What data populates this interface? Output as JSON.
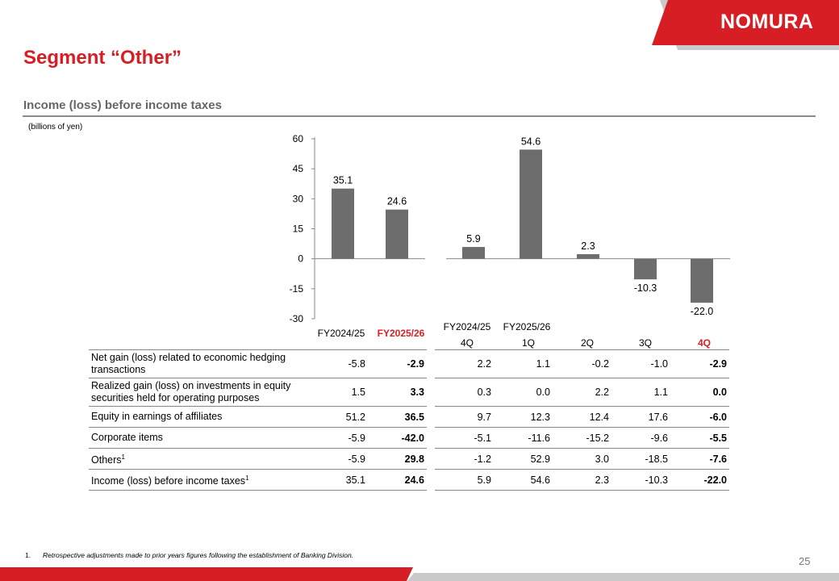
{
  "logo": "NOMURA",
  "page_title": "Segment “Other”",
  "section_title": "Income (loss) before income taxes",
  "units_note": "(billions of yen)",
  "colors": {
    "accent": "#d71e24",
    "bar": "#6d6d6d",
    "grey": "#c9c9c9"
  },
  "chart_data": {
    "type": "bar",
    "y_ticks": [
      60,
      45,
      30,
      15,
      0,
      -15,
      -30
    ],
    "ylim": [
      -30,
      60
    ],
    "groups": [
      {
        "name": "annual",
        "categories": [
          "FY2024/25",
          "FY2025/26"
        ],
        "values": [
          35.1,
          24.6
        ]
      },
      {
        "name": "quarterly",
        "categories": [
          "FY2024/25 4Q",
          "FY2025/26 1Q",
          "2Q",
          "3Q",
          "4Q"
        ],
        "values": [
          5.9,
          54.6,
          2.3,
          -10.3,
          -22.0
        ]
      }
    ],
    "data_labels": [
      "35.1",
      "24.6",
      "5.9",
      "54.6",
      "2.3",
      "-10.3",
      "-22.0"
    ]
  },
  "headers": {
    "annual": [
      "FY2024/25",
      "FY2025/26"
    ],
    "quarter_years": [
      "FY2024/25",
      "FY2025/26"
    ],
    "quarters": [
      "4Q",
      "1Q",
      "2Q",
      "3Q",
      "4Q"
    ]
  },
  "table": {
    "rows": [
      {
        "label": "Net gain (loss) related to economic hedging transactions",
        "sup": "",
        "values": [
          "-5.8",
          "-2.9",
          "2.2",
          "1.1",
          "-0.2",
          "-1.0",
          "-2.9"
        ]
      },
      {
        "label": "Realized gain (loss) on investments in equity securities held for operating purposes",
        "sup": "",
        "values": [
          "1.5",
          "3.3",
          "0.3",
          "0.0",
          "2.2",
          "1.1",
          "0.0"
        ]
      },
      {
        "label": "Equity in earnings of affiliates",
        "sup": "",
        "values": [
          "51.2",
          "36.5",
          "9.7",
          "12.3",
          "12.4",
          "17.6",
          "-6.0"
        ]
      },
      {
        "label": "Corporate items",
        "sup": "",
        "values": [
          "-5.9",
          "-42.0",
          "-5.1",
          "-11.6",
          "-15.2",
          "-9.6",
          "-5.5"
        ]
      },
      {
        "label": "Others",
        "sup": "1",
        "values": [
          "-5.9",
          "29.8",
          "-1.2",
          "52.9",
          "3.0",
          "-18.5",
          "-7.6"
        ]
      },
      {
        "label": "Income (loss) before income taxes",
        "sup": "1",
        "values": [
          "35.1",
          "24.6",
          "5.9",
          "54.6",
          "2.3",
          "-10.3",
          "-22.0"
        ]
      }
    ]
  },
  "footnote": {
    "num": "1.",
    "text": "Retrospective adjustments made to prior years figures following the establishment of Banking Division."
  },
  "page_number": "25"
}
